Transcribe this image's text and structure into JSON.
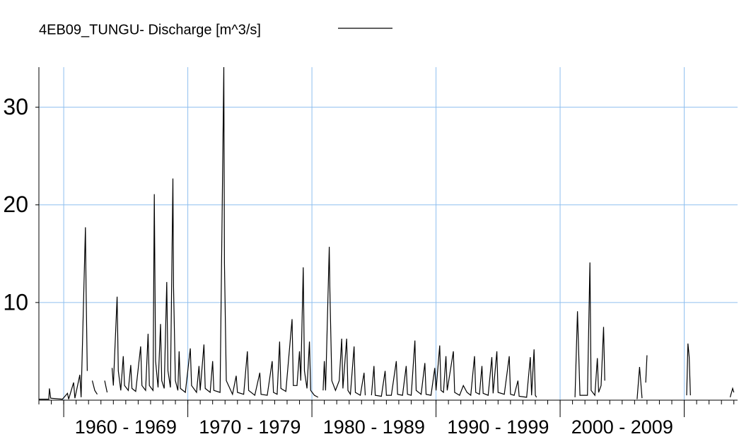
{
  "chart_data": {
    "type": "line",
    "xlim": [
      1958,
      2014.3
    ],
    "ylim": [
      0,
      34.1
    ],
    "yticks": [
      10,
      20,
      30
    ],
    "xticks": [
      1960,
      1970,
      1980,
      1990,
      2000,
      2010
    ],
    "x_band_labels": [
      {
        "value": 1965,
        "label": "1960 - 1969"
      },
      {
        "value": 1975,
        "label": "1970 - 1979"
      },
      {
        "value": 1985,
        "label": "1980 - 1989"
      },
      {
        "value": 1995,
        "label": "1990 - 1999"
      },
      {
        "value": 2005,
        "label": "2000 - 2009"
      }
    ],
    "grid": true,
    "grid_color": "#8fbfef",
    "series": [
      {
        "name": "4EB09_TUNGU- Discharge [m^3/s]",
        "color": "#000000",
        "x": [
          1958.0,
          1958.8,
          1958.85,
          1958.95,
          1959.9,
          1960.3,
          1960.4,
          1960.8,
          1960.9,
          1961.3,
          1961.4,
          1961.75,
          1961.8,
          1961.9,
          1962.1,
          1962.3,
          1962.5,
          1962.7,
          1963.0,
          1963.3,
          1963.5,
          1963.7,
          1963.9,
          1964.0,
          1964.3,
          1964.4,
          1964.6,
          1964.8,
          1964.9,
          1965.2,
          1965.4,
          1965.5,
          1965.8,
          1966.2,
          1966.3,
          1966.6,
          1966.8,
          1966.9,
          1967.2,
          1967.3,
          1967.4,
          1967.6,
          1967.8,
          1967.9,
          1968.1,
          1968.3,
          1968.4,
          1968.6,
          1968.8,
          1968.85,
          1969.0,
          1969.2,
          1969.3,
          1969.4,
          1969.8,
          1970.2,
          1970.3,
          1970.7,
          1970.9,
          1971.0,
          1971.3,
          1971.4,
          1971.8,
          1972.0,
          1972.1,
          1972.6,
          1972.9,
          1972.95,
          1973.1,
          1973.6,
          1973.9,
          1974.0,
          1974.5,
          1974.8,
          1974.9,
          1975.4,
          1975.8,
          1975.9,
          1976.4,
          1976.8,
          1976.9,
          1977.2,
          1977.4,
          1977.5,
          1977.9,
          1978.4,
          1978.5,
          1978.8,
          1979.0,
          1979.1,
          1979.3,
          1979.4,
          1979.6,
          1979.8,
          1979.9,
          1980.2,
          1980.5,
          1980.7,
          1980.9,
          1981.0,
          1981.1,
          1981.4,
          1981.45,
          1981.6,
          1981.9,
          1982.2,
          1982.4,
          1982.5,
          1982.8,
          1982.9,
          1983.1,
          1983.4,
          1983.5,
          1983.9,
          1984.2,
          1984.3,
          1984.5,
          1984.8,
          1985.0,
          1985.1,
          1985.6,
          1985.9,
          1986.0,
          1986.4,
          1986.8,
          1986.9,
          1987.3,
          1987.6,
          1987.7,
          1988.0,
          1988.3,
          1988.4,
          1988.8,
          1989.1,
          1989.2,
          1989.6,
          1989.9,
          1990.0,
          1990.3,
          1990.4,
          1990.6,
          1990.8,
          1990.9,
          1991.4,
          1991.5,
          1991.9,
          1992.2,
          1992.5,
          1992.8,
          1993.1,
          1993.2,
          1993.5,
          1993.7,
          1993.8,
          1994.2,
          1994.5,
          1994.6,
          1994.9,
          1995.0,
          1995.5,
          1995.9,
          1996.0,
          1996.3,
          1996.6,
          1996.7,
          1997.3,
          1997.6,
          1997.7,
          1997.9,
          1998.0,
          1998.1,
          1999.5,
          2001.2,
          2001.4,
          2001.6,
          2002.2,
          2002.4,
          2002.5,
          2002.8,
          2003.0,
          2003.1,
          2003.3,
          2003.5,
          2003.6,
          2005.0,
          2006.2,
          2006.4,
          2006.6,
          2006.75,
          2006.9,
          2007.0,
          2009.0,
          2010.2,
          2010.3,
          2010.4,
          2010.5,
          2012.0,
          2013.7,
          2013.9,
          2014.0
        ],
        "values": [
          0.1,
          0.1,
          1.2,
          0.2,
          0.1,
          0.7,
          0.1,
          1.8,
          0.2,
          2.6,
          0.3,
          17.7,
          11.6,
          3,
          null,
          2,
          1,
          0.6,
          null,
          2.0,
          0.8,
          null,
          3.3,
          1.5,
          10.6,
          3,
          1,
          4.5,
          1.5,
          1,
          3.6,
          1.2,
          0.9,
          5.5,
          1.5,
          1,
          6.8,
          1.5,
          1,
          21.1,
          4,
          1.3,
          7.8,
          2,
          1.2,
          12.1,
          3,
          1.3,
          22.7,
          11.6,
          2,
          1,
          5,
          1.2,
          0.8,
          5.3,
          1.5,
          0.8,
          3.5,
          1,
          5.7,
          1.2,
          0.8,
          4,
          1,
          0.8,
          34.1,
          14,
          2,
          0.6,
          2.5,
          0.8,
          0.6,
          5,
          1,
          0.5,
          2.8,
          0.6,
          0.5,
          4,
          0.8,
          0.6,
          6,
          1.2,
          0.9,
          8.3,
          1.5,
          1.5,
          5,
          2,
          13.6,
          3,
          1.2,
          6,
          1,
          0.5,
          0.3,
          null,
          1,
          4,
          1,
          15.7,
          11.2,
          2,
          1,
          2,
          6.3,
          1.2,
          6.3,
          1,
          0.6,
          5.5,
          0.8,
          0.5,
          2.8,
          0.5,
          null,
          0.5,
          3.5,
          0.5,
          0.4,
          3,
          0.5,
          0.5,
          4,
          0.6,
          0.5,
          3.5,
          0.6,
          0.5,
          6.1,
          1,
          0.6,
          3.8,
          0.6,
          0.5,
          3.3,
          1,
          5.6,
          1,
          0.8,
          4.5,
          1,
          5,
          0.8,
          0.5,
          1.5,
          0.8,
          0.5,
          4.5,
          0.8,
          0.6,
          3.5,
          0.7,
          0.5,
          4.4,
          0.7,
          5,
          0.8,
          0.6,
          4.5,
          0.6,
          0.5,
          2,
          0.4,
          0.3,
          4.4,
          0.5,
          5.2,
          0.5,
          0.3,
          null,
          0.3,
          9.1,
          0.5,
          0.5,
          14.1,
          1,
          0.5,
          4.3,
          0.8,
          1.5,
          7.5,
          2,
          null,
          0.1,
          3.4,
          0.2,
          null,
          1.8,
          4.6,
          null,
          0.5,
          5.8,
          4.4,
          0.5,
          null,
          0.3,
          1.2,
          0.8
        ]
      }
    ]
  }
}
